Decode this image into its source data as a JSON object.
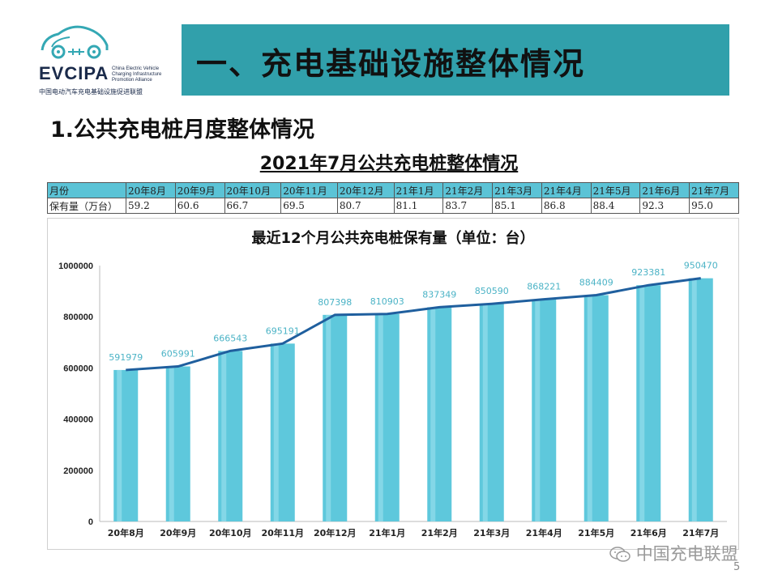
{
  "logo": {
    "name": "EVCIPA",
    "english_lines": [
      "China Electric Vehicle",
      "Charging Infrastructure",
      "Promotion Alliance"
    ],
    "chinese": "中国电动汽车充电基础设施促进联盟"
  },
  "banner": {
    "title": "一、充电基础设施整体情况",
    "color": "#31a0ab"
  },
  "subheading": "1.公共充电桩月度整体情况",
  "table": {
    "title": "2021年7月公共充电桩整体情况",
    "header_label": "月份",
    "row_label": "保有量（万台）",
    "months": [
      "20年8月",
      "20年9月",
      "20年10月",
      "20年11月",
      "20年12月",
      "21年1月",
      "21年2月",
      "21年3月",
      "21年4月",
      "21年5月",
      "21年6月",
      "21年7月"
    ],
    "values": [
      "59.2",
      "60.6",
      "66.7",
      "69.5",
      "80.7",
      "81.1",
      "83.7",
      "85.1",
      "86.8",
      "88.4",
      "92.3",
      "95.0"
    ],
    "header_color": "#5bc3d6"
  },
  "chart_data": {
    "type": "bar",
    "title": "最近12个月公共充电桩保有量（单位：台）",
    "categories": [
      "20年8月",
      "20年9月",
      "20年10月",
      "20年11月",
      "20年12月",
      "21年1月",
      "21年2月",
      "21年3月",
      "21年4月",
      "21年5月",
      "21年6月",
      "21年7月"
    ],
    "values": [
      591979,
      605991,
      666543,
      695191,
      807398,
      810903,
      837349,
      850590,
      868221,
      884409,
      923381,
      950470
    ],
    "data_labels": [
      "591979",
      "605991",
      "666543",
      "695191",
      "807398",
      "810903",
      "837349",
      "850590",
      "868221",
      "884409",
      "923381",
      "950470"
    ],
    "overlay_line": true,
    "ylim": [
      0,
      1000000
    ],
    "yticks": [
      "0",
      "200000",
      "400000",
      "600000",
      "800000",
      "1000000"
    ],
    "grid": false,
    "bar_color": "#5ec8dc",
    "line_color": "#1f5f9e",
    "label_color": "#4bb3c6"
  },
  "watermark": {
    "text": "中国充电联盟",
    "icon": "wechat-icon"
  },
  "page_number": "5"
}
